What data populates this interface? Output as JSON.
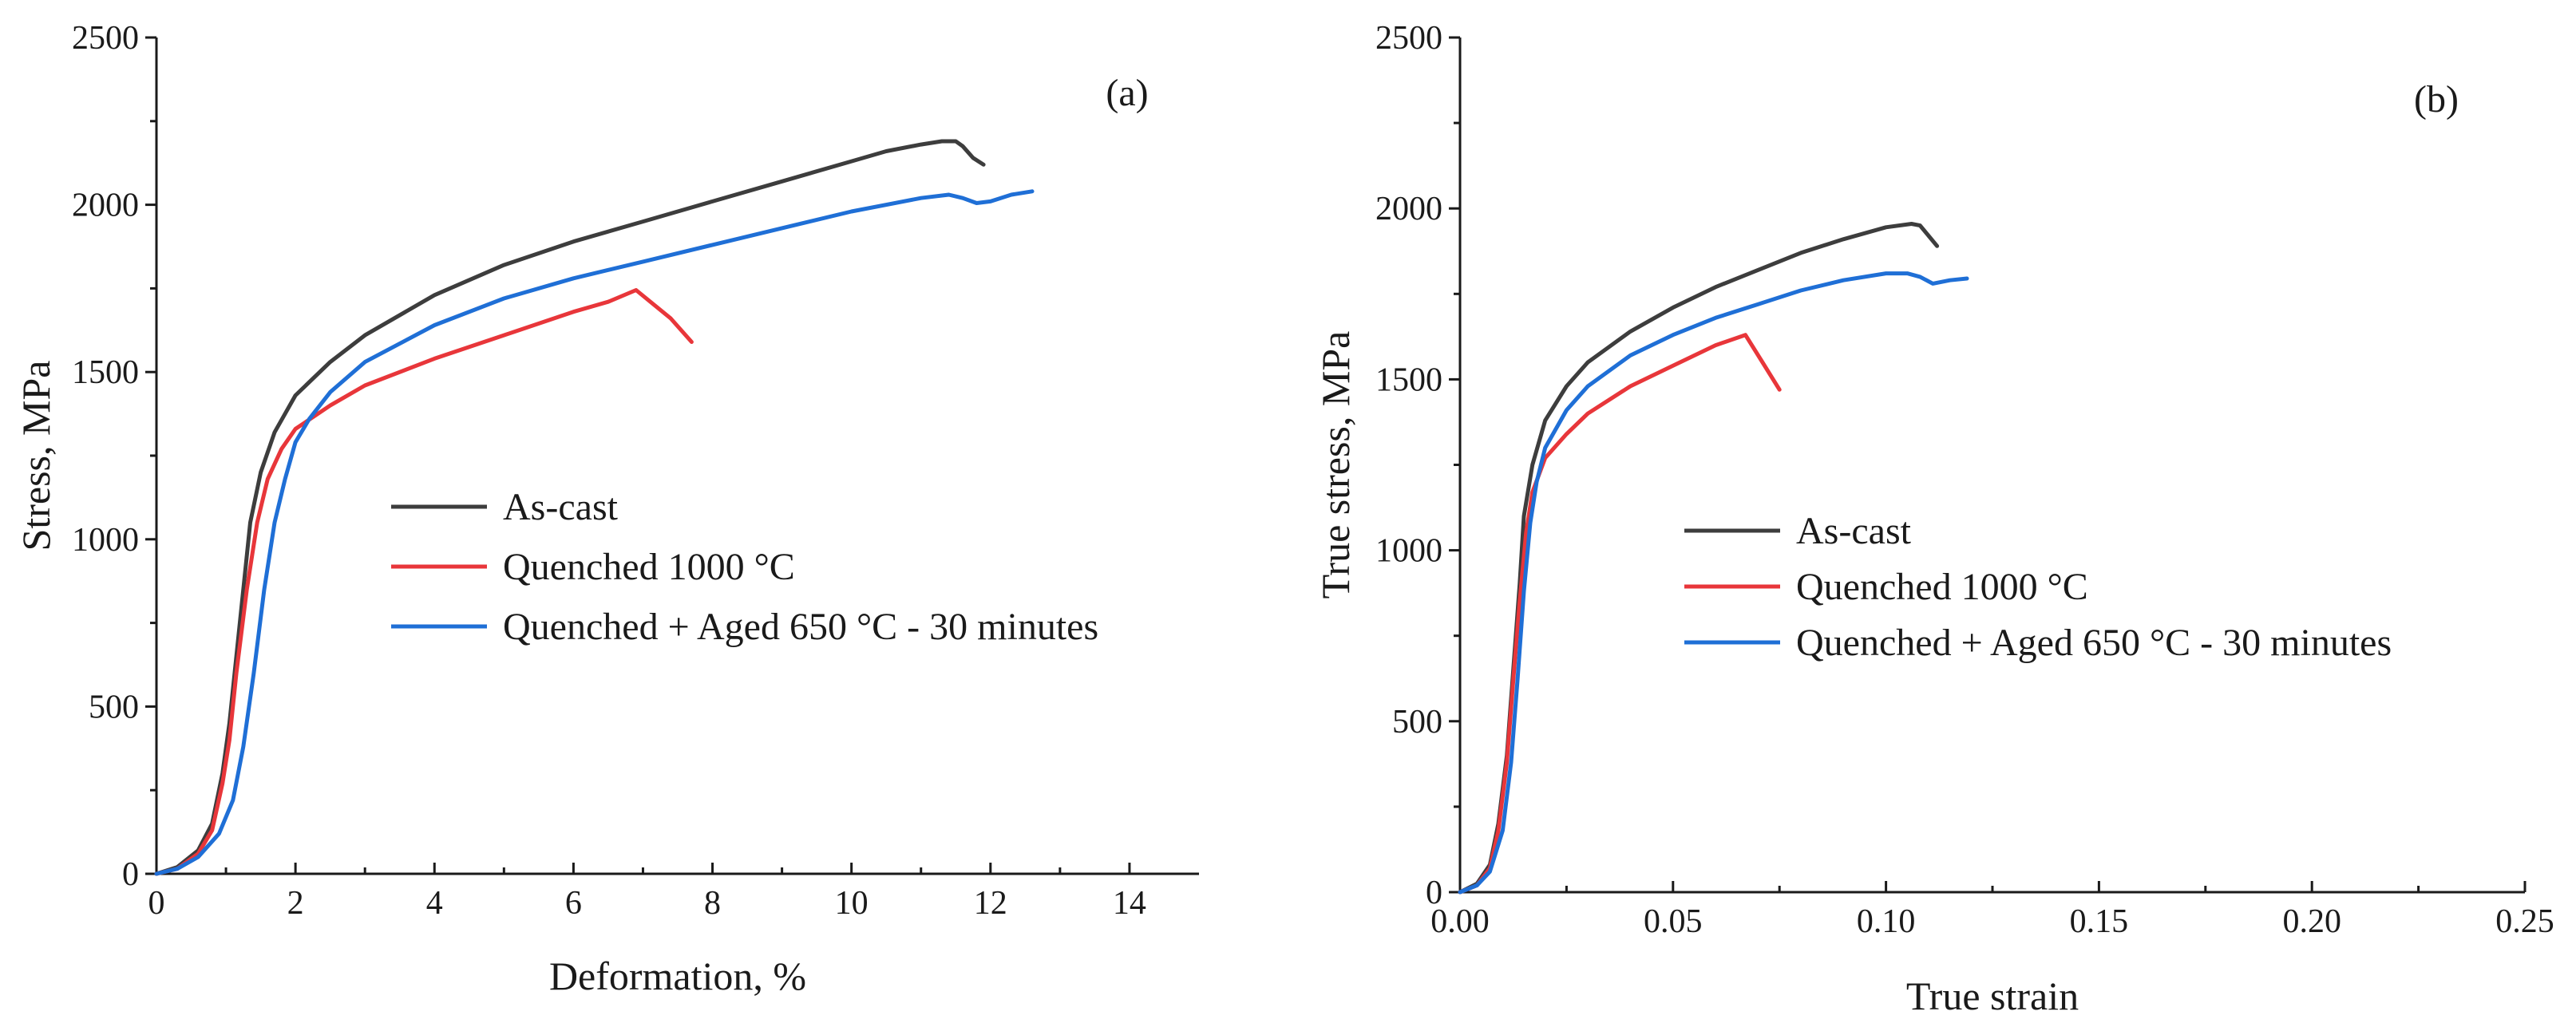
{
  "chart_data": [
    {
      "type": "line",
      "panel_label": "(a)",
      "xlabel": "Deformation, %",
      "ylabel": "Stress, MPa",
      "xlim": [
        0,
        15
      ],
      "ylim": [
        0,
        2500
      ],
      "xticks": [
        0,
        2,
        4,
        6,
        8,
        10,
        12,
        14
      ],
      "yticks": [
        0,
        500,
        1000,
        1500,
        2000,
        2500
      ],
      "xtick_labels": [
        "0",
        "2",
        "4",
        "6",
        "8",
        "10",
        "12",
        "14"
      ],
      "ytick_labels": [
        "0",
        "500",
        "1000",
        "1500",
        "2000",
        "2500"
      ],
      "grid": false,
      "legend_position": "center-right",
      "series": [
        {
          "name": "As-cast",
          "color": "#3d3d3d",
          "points": [
            [
              0,
              0
            ],
            [
              0.3,
              20
            ],
            [
              0.6,
              70
            ],
            [
              0.8,
              150
            ],
            [
              0.95,
              300
            ],
            [
              1.05,
              450
            ],
            [
              1.15,
              650
            ],
            [
              1.25,
              850
            ],
            [
              1.35,
              1050
            ],
            [
              1.5,
              1200
            ],
            [
              1.7,
              1320
            ],
            [
              2.0,
              1430
            ],
            [
              2.5,
              1530
            ],
            [
              3.0,
              1610
            ],
            [
              4.0,
              1730
            ],
            [
              5.0,
              1820
            ],
            [
              6.0,
              1890
            ],
            [
              7.0,
              1950
            ],
            [
              8.0,
              2010
            ],
            [
              9.0,
              2070
            ],
            [
              10.0,
              2130
            ],
            [
              10.5,
              2160
            ],
            [
              11.0,
              2180
            ],
            [
              11.3,
              2190
            ],
            [
              11.5,
              2190
            ],
            [
              11.6,
              2175
            ],
            [
              11.75,
              2140
            ],
            [
              11.9,
              2120
            ]
          ]
        },
        {
          "name": "Quenched 1000 °C",
          "color": "#e8363a",
          "points": [
            [
              0,
              0
            ],
            [
              0.3,
              15
            ],
            [
              0.6,
              60
            ],
            [
              0.8,
              130
            ],
            [
              0.95,
              270
            ],
            [
              1.05,
              400
            ],
            [
              1.15,
              600
            ],
            [
              1.3,
              850
            ],
            [
              1.45,
              1050
            ],
            [
              1.6,
              1180
            ],
            [
              1.8,
              1270
            ],
            [
              2.0,
              1330
            ],
            [
              2.5,
              1400
            ],
            [
              3.0,
              1460
            ],
            [
              4.0,
              1540
            ],
            [
              5.0,
              1610
            ],
            [
              6.0,
              1680
            ],
            [
              6.5,
              1710
            ],
            [
              6.9,
              1745
            ],
            [
              7.4,
              1660
            ],
            [
              7.7,
              1590
            ]
          ]
        },
        {
          "name": "Quenched + Aged 650 °C - 30 minutes",
          "color": "#1f6fd6",
          "points": [
            [
              0,
              0
            ],
            [
              0.3,
              15
            ],
            [
              0.6,
              50
            ],
            [
              0.9,
              120
            ],
            [
              1.1,
              220
            ],
            [
              1.25,
              380
            ],
            [
              1.4,
              600
            ],
            [
              1.55,
              850
            ],
            [
              1.7,
              1050
            ],
            [
              1.85,
              1180
            ],
            [
              2.0,
              1290
            ],
            [
              2.2,
              1360
            ],
            [
              2.5,
              1440
            ],
            [
              3.0,
              1530
            ],
            [
              4.0,
              1640
            ],
            [
              5.0,
              1720
            ],
            [
              6.0,
              1780
            ],
            [
              7.0,
              1830
            ],
            [
              8.0,
              1880
            ],
            [
              9.0,
              1930
            ],
            [
              10.0,
              1980
            ],
            [
              11.0,
              2020
            ],
            [
              11.4,
              2030
            ],
            [
              11.6,
              2020
            ],
            [
              11.8,
              2005
            ],
            [
              12.0,
              2010
            ],
            [
              12.3,
              2030
            ],
            [
              12.6,
              2040
            ]
          ]
        }
      ]
    },
    {
      "type": "line",
      "panel_label": "(b)",
      "xlabel": "True strain",
      "ylabel": "True stress, MPa",
      "xlim": [
        0,
        0.25
      ],
      "ylim": [
        0,
        2500
      ],
      "xticks": [
        0,
        0.05,
        0.1,
        0.15,
        0.2,
        0.25
      ],
      "yticks": [
        0,
        500,
        1000,
        1500,
        2000,
        2500
      ],
      "xtick_labels": [
        "0.00",
        "0.05",
        "0.10",
        "0.15",
        "0.20",
        "0.25"
      ],
      "ytick_labels": [
        "0",
        "500",
        "1000",
        "1500",
        "2000",
        "2500"
      ],
      "grid": false,
      "legend_position": "center-right",
      "series": [
        {
          "name": "As-cast",
          "color": "#3d3d3d",
          "points": [
            [
              0,
              0
            ],
            [
              0.004,
              25
            ],
            [
              0.007,
              80
            ],
            [
              0.009,
              200
            ],
            [
              0.011,
              400
            ],
            [
              0.0125,
              650
            ],
            [
              0.014,
              900
            ],
            [
              0.015,
              1100
            ],
            [
              0.017,
              1250
            ],
            [
              0.02,
              1380
            ],
            [
              0.025,
              1480
            ],
            [
              0.03,
              1550
            ],
            [
              0.04,
              1640
            ],
            [
              0.05,
              1710
            ],
            [
              0.06,
              1770
            ],
            [
              0.07,
              1820
            ],
            [
              0.08,
              1870
            ],
            [
              0.09,
              1910
            ],
            [
              0.1,
              1945
            ],
            [
              0.106,
              1955
            ],
            [
              0.108,
              1950
            ],
            [
              0.11,
              1920
            ],
            [
              0.112,
              1890
            ]
          ]
        },
        {
          "name": "Quenched 1000 °C",
          "color": "#e8363a",
          "points": [
            [
              0,
              0
            ],
            [
              0.004,
              20
            ],
            [
              0.007,
              70
            ],
            [
              0.009,
              180
            ],
            [
              0.011,
              380
            ],
            [
              0.0125,
              620
            ],
            [
              0.014,
              850
            ],
            [
              0.0155,
              1050
            ],
            [
              0.017,
              1170
            ],
            [
              0.02,
              1270
            ],
            [
              0.025,
              1340
            ],
            [
              0.03,
              1400
            ],
            [
              0.04,
              1480
            ],
            [
              0.05,
              1540
            ],
            [
              0.06,
              1600
            ],
            [
              0.067,
              1630
            ],
            [
              0.071,
              1550
            ],
            [
              0.075,
              1470
            ]
          ]
        },
        {
          "name": "Quenched + Aged 650 °C - 30 minutes",
          "color": "#1f6fd6",
          "points": [
            [
              0,
              0
            ],
            [
              0.004,
              20
            ],
            [
              0.007,
              60
            ],
            [
              0.01,
              180
            ],
            [
              0.012,
              380
            ],
            [
              0.0135,
              620
            ],
            [
              0.015,
              880
            ],
            [
              0.0165,
              1080
            ],
            [
              0.018,
              1200
            ],
            [
              0.02,
              1300
            ],
            [
              0.025,
              1410
            ],
            [
              0.03,
              1480
            ],
            [
              0.04,
              1570
            ],
            [
              0.05,
              1630
            ],
            [
              0.06,
              1680
            ],
            [
              0.07,
              1720
            ],
            [
              0.08,
              1760
            ],
            [
              0.09,
              1790
            ],
            [
              0.1,
              1810
            ],
            [
              0.105,
              1810
            ],
            [
              0.108,
              1800
            ],
            [
              0.111,
              1780
            ],
            [
              0.115,
              1790
            ],
            [
              0.119,
              1795
            ]
          ]
        }
      ]
    }
  ]
}
